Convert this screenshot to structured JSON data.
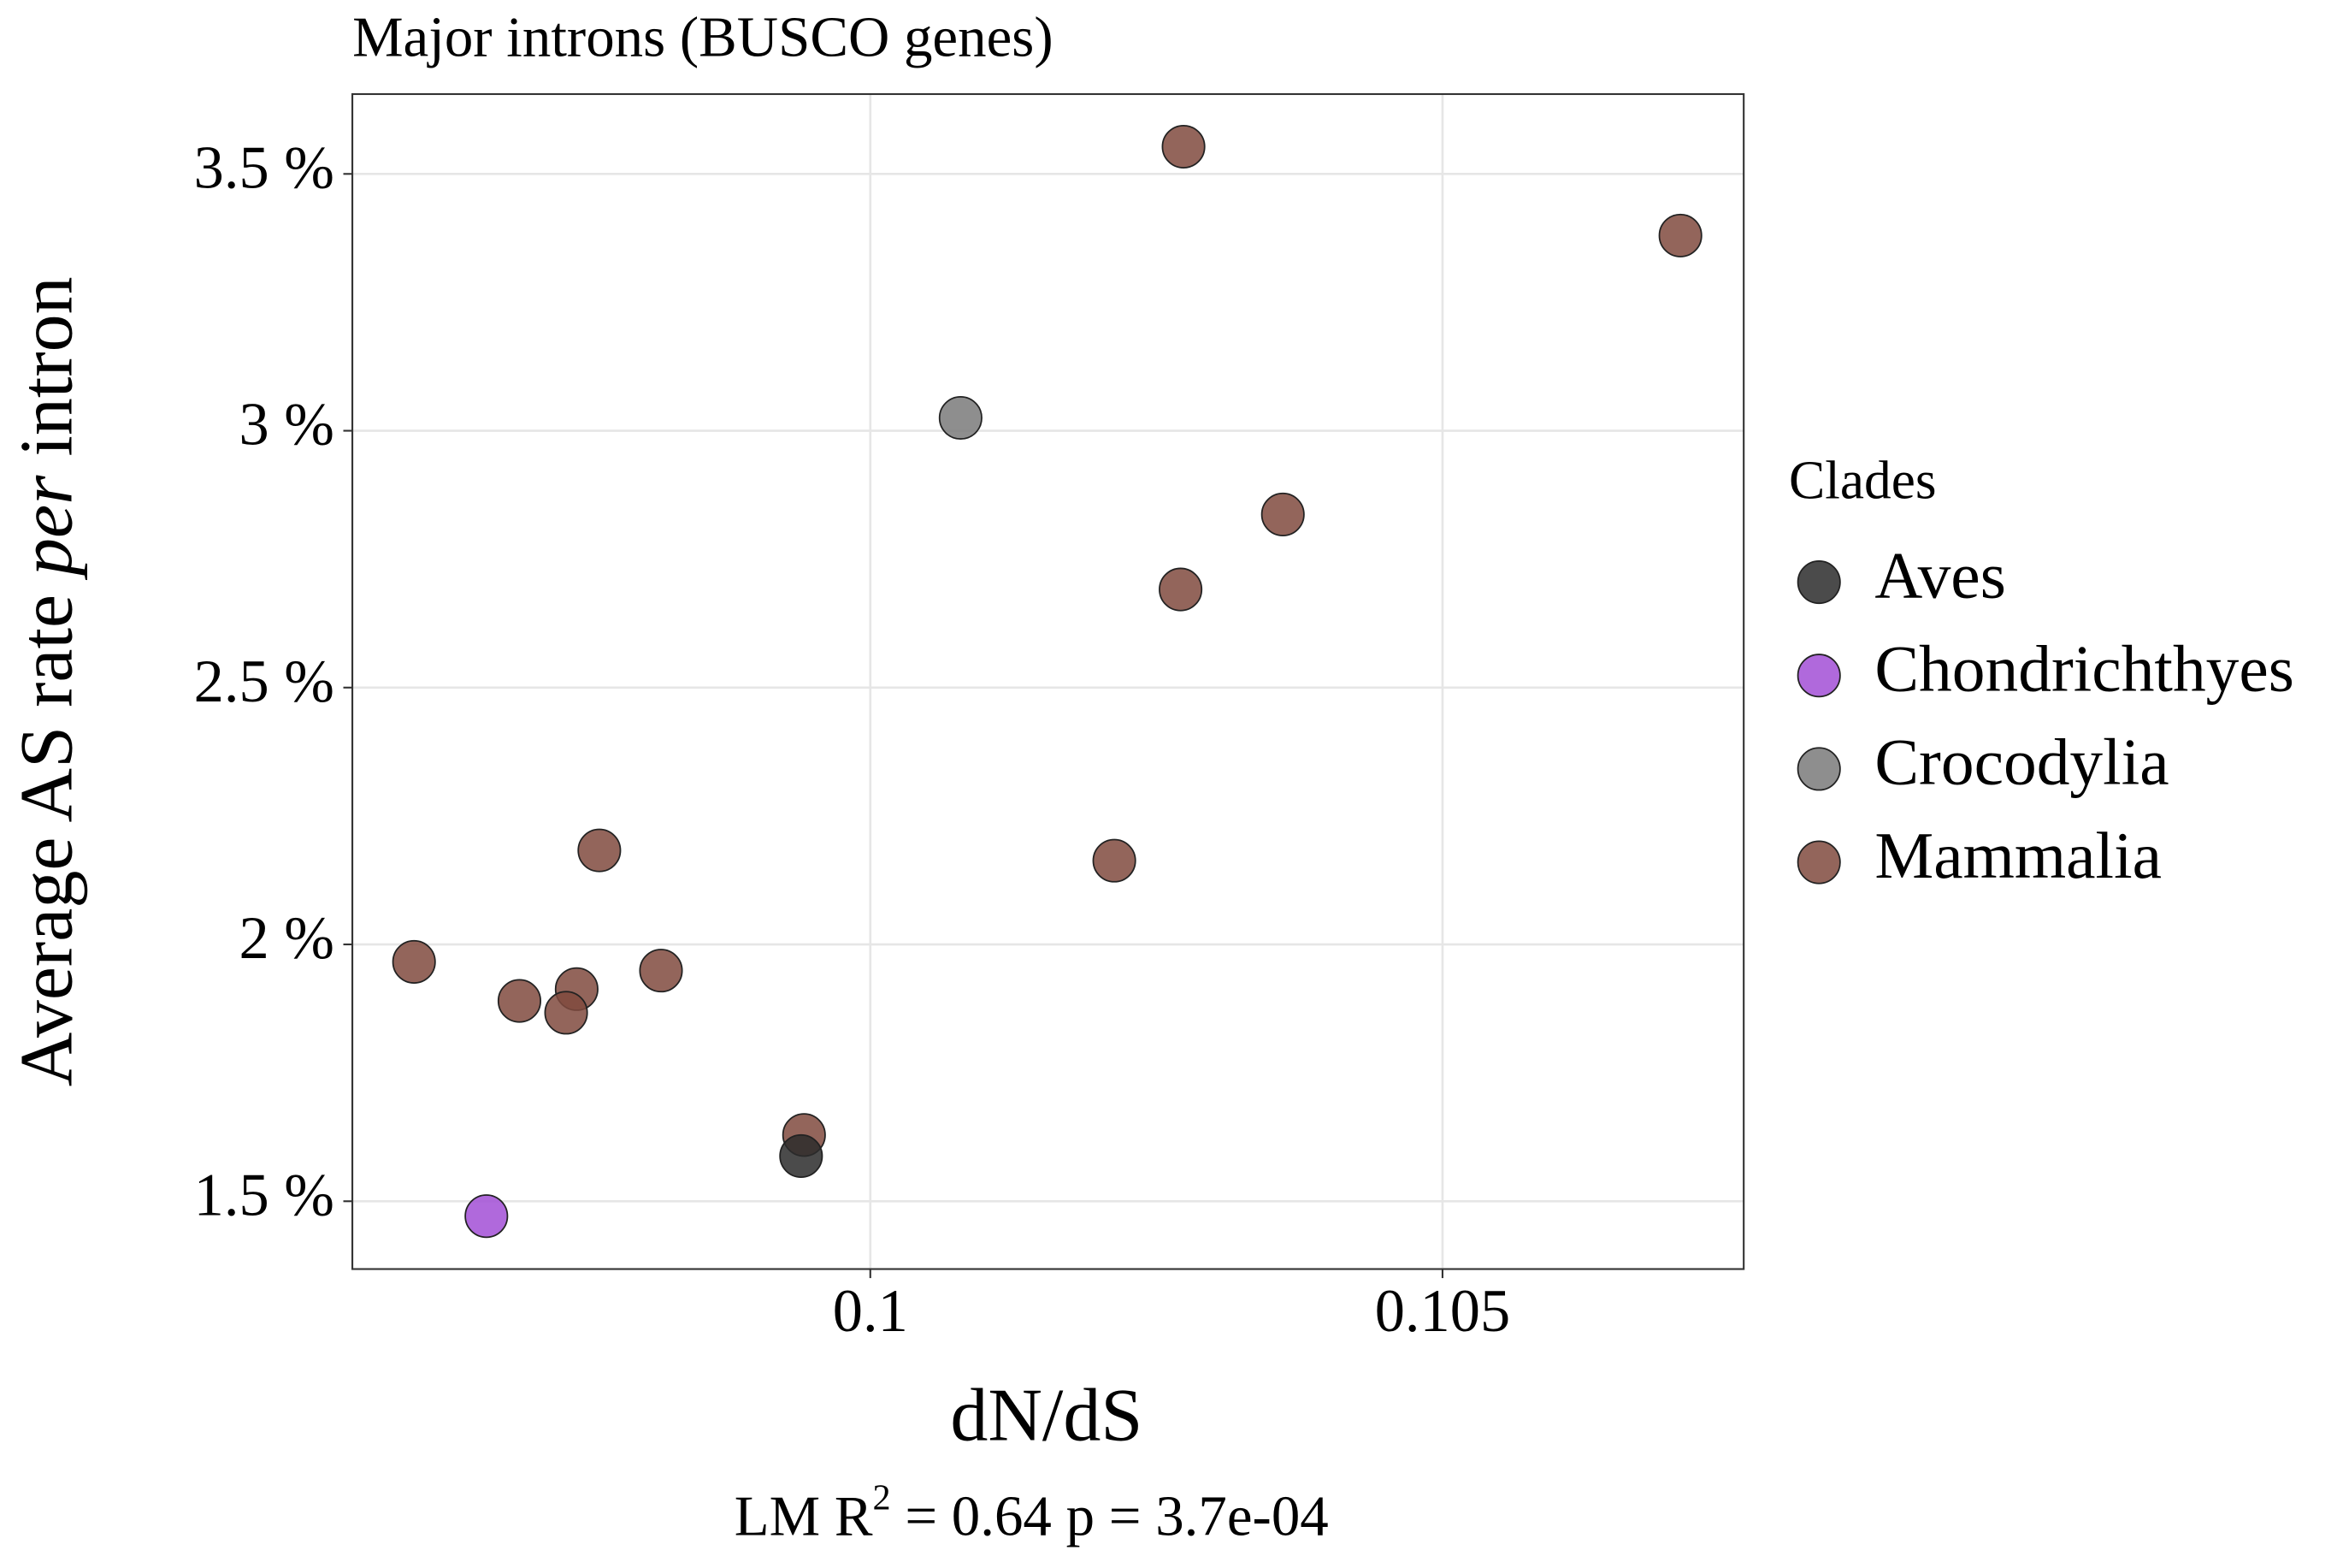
{
  "chart_data": {
    "type": "scatter",
    "title": "Major introns (BUSCO genes)",
    "x_label": "dN/dS",
    "y_label": [
      "Average AS rate ",
      "per",
      " intron"
    ],
    "annotation": [
      "LM  R",
      "2",
      " = 0.64    p = 3.7e-04"
    ],
    "legend_title": "Clades",
    "legend": "right",
    "grid": true,
    "xlim": [
      0.095474,
      0.107632
    ],
    "xticks": [
      0.1,
      0.105
    ],
    "ylim": [
      1.368,
      3.6554
    ],
    "yticks": [
      {
        "value": 1.5,
        "label": "1.5 %"
      },
      {
        "value": 2,
        "label": "2 %"
      },
      {
        "value": 2.5,
        "label": "2.5 %"
      },
      {
        "value": 3,
        "label": "3 %"
      },
      {
        "value": 3.5,
        "label": "3.5 %"
      }
    ],
    "series": [
      {
        "name": "Aves",
        "color": "#2b2b2b",
        "x": [
          0.099395
        ],
        "values": [
          1.588
        ]
      },
      {
        "name": "Chondrichthyes",
        "color": "#a24fd6",
        "x": [
          0.096645
        ],
        "values": [
          1.471
        ]
      },
      {
        "name": "Crocodylia",
        "color": "#7a7a7a",
        "x": [
          0.100789
        ],
        "values": [
          3.025
        ]
      },
      {
        "name": "Mammalia",
        "color": "#804a3e",
        "x": [
          0.102737,
          0.107079,
          0.103605,
          0.102711,
          0.102132,
          0.097632,
          0.096013,
          0.098171,
          0.097434,
          0.096934,
          0.097342,
          0.099421
        ],
        "values": [
          3.553,
          3.38,
          2.837,
          2.691,
          2.163,
          2.183,
          1.966,
          1.949,
          1.913,
          1.89,
          1.867,
          1.629
        ]
      }
    ]
  }
}
